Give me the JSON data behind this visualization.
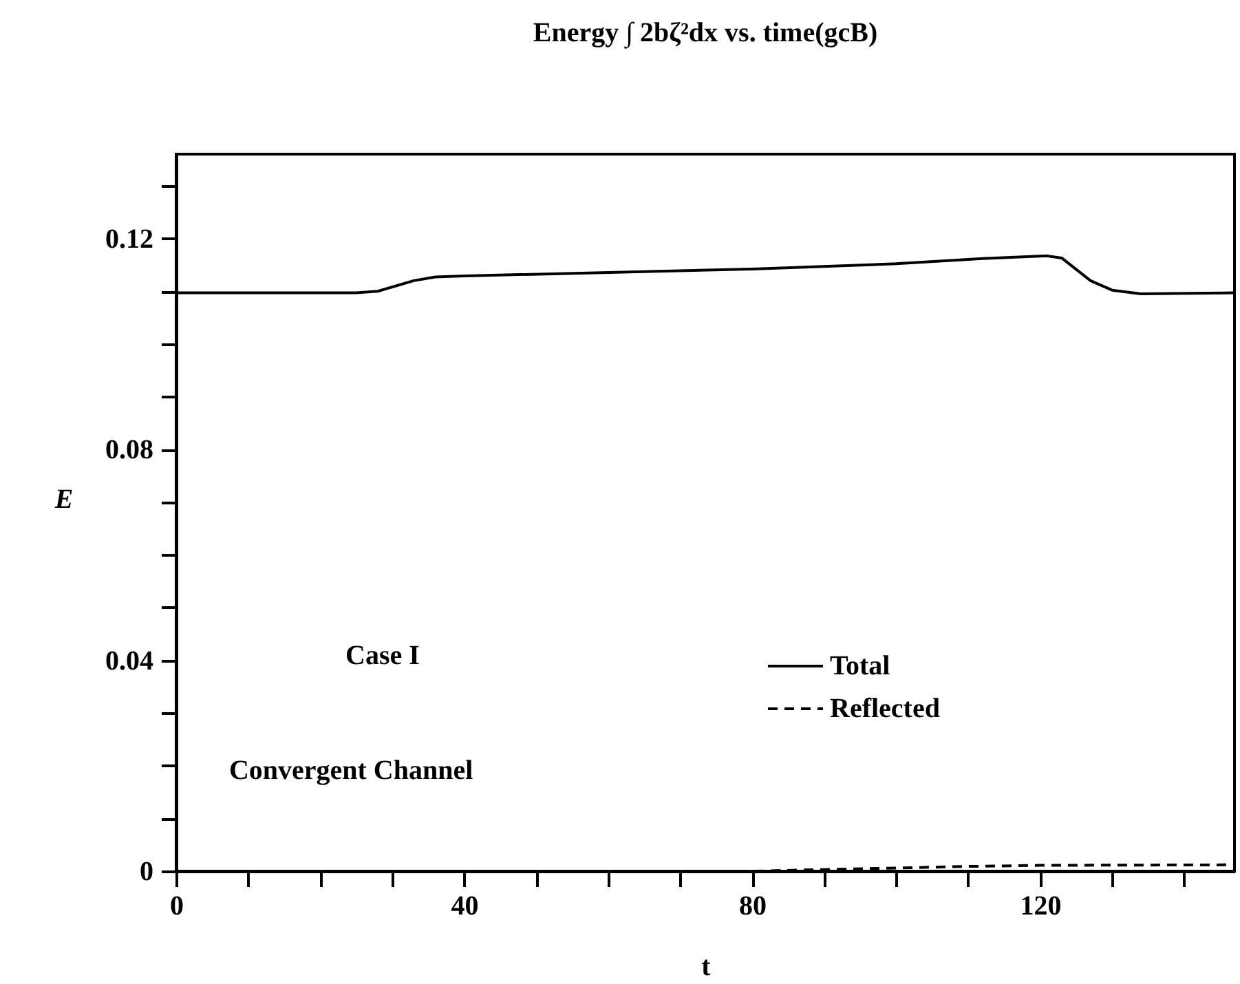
{
  "chart_data": {
    "type": "line",
    "title": "Energy ∫ 2bζ²dx vs. time(gcB)",
    "xlabel": "t",
    "ylabel": "E",
    "x": [
      0,
      25,
      28,
      33,
      36,
      40,
      80,
      100,
      112,
      121,
      123,
      127,
      130,
      134,
      147
    ],
    "series": [
      {
        "name": "Total",
        "color": "#000000",
        "line_style": "solid",
        "values": [
          0.1097,
          0.1097,
          0.11,
          0.112,
          0.1127,
          0.1129,
          0.1142,
          0.1152,
          0.1162,
          0.1167,
          0.1163,
          0.112,
          0.1102,
          0.1095,
          0.1097
        ]
      },
      {
        "name": "Reflected",
        "color": "#000000",
        "line_style": "dashed",
        "x": [
          0,
          80,
          90,
          100,
          110,
          120,
          147
        ],
        "values": [
          0,
          0,
          0.0003,
          0.0006,
          0.0009,
          0.0011,
          0.0012
        ]
      }
    ],
    "xlim": [
      0,
      147
    ],
    "ylim": [
      0,
      0.136
    ],
    "xticks": [
      0,
      {
        "value": 10,
        "label": null
      },
      {
        "value": 20,
        "label": null
      },
      {
        "value": 30,
        "label": null
      },
      40,
      {
        "value": 50,
        "label": null
      },
      {
        "value": 60,
        "label": null
      },
      {
        "value": 70,
        "label": null
      },
      80,
      {
        "value": 90,
        "label": null
      },
      {
        "value": 100,
        "label": null
      },
      {
        "value": 110,
        "label": null
      },
      120,
      {
        "value": 130,
        "label": null
      },
      {
        "value": 140,
        "label": null
      }
    ],
    "yticks": [
      0,
      {
        "value": 0.01,
        "label": null
      },
      {
        "value": 0.02,
        "label": null
      },
      {
        "value": 0.03,
        "label": null
      },
      0.04,
      {
        "value": 0.05,
        "label": null
      },
      {
        "value": 0.06,
        "label": null
      },
      {
        "value": 0.07,
        "label": null
      },
      0.08,
      {
        "value": 0.09,
        "label": null
      },
      {
        "value": 0.1,
        "label": null
      },
      {
        "value": 0.11,
        "label": null
      },
      0.12,
      {
        "value": 0.13,
        "label": null
      }
    ],
    "annotations": [
      "Case I",
      "Convergent Channel"
    ],
    "legend": "bottom right",
    "grid": false
  }
}
